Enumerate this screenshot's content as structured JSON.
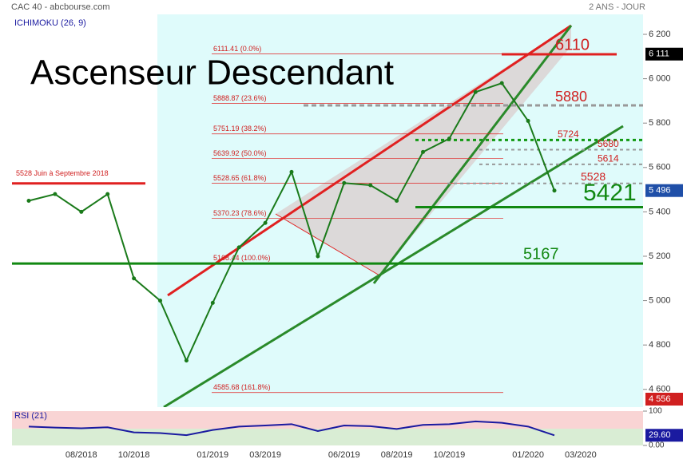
{
  "chart_data": {
    "type": "line",
    "source": "CAC 40 - abcbourse.com",
    "period": "2 ANS - JOUR",
    "indicator": "ICHIMOKU (26, 9)",
    "title": "Ascenseur Descendant",
    "categories": [
      null,
      null,
      "08/2018",
      null,
      "10/2018",
      null,
      null,
      "01/2019",
      null,
      "03/2019",
      null,
      null,
      "06/2019",
      null,
      "08/2019",
      null,
      "10/2019",
      null,
      null,
      "01/2020",
      null,
      "03/2020"
    ],
    "series": [
      {
        "name": "CAC 40",
        "color": "#1a7a1a",
        "values": [
          5450,
          5480,
          5400,
          5480,
          5100,
          5000,
          4730,
          4990,
          5240,
          5350,
          5580,
          5200,
          5530,
          5520,
          5450,
          5670,
          5730,
          5940,
          5980,
          5810,
          5496,
          null
        ]
      }
    ],
    "ylim": [
      4520,
      6290
    ],
    "yticks": [
      {
        "value": 6200,
        "label": "6 200"
      },
      {
        "value": 6000,
        "label": "6 000"
      },
      {
        "value": 5800,
        "label": "5 800"
      },
      {
        "value": 5600,
        "label": "5 600"
      },
      {
        "value": 5400,
        "label": "5 400"
      },
      {
        "value": 5200,
        "label": "5 200"
      },
      {
        "value": 5000,
        "label": "5 000"
      },
      {
        "value": 4800,
        "label": "4 800"
      },
      {
        "value": 4600,
        "label": "4 600"
      }
    ],
    "price_badges": [
      {
        "value": 6111,
        "label": "6 111",
        "color": "#000000"
      },
      {
        "value": 5496,
        "label": "5 496",
        "color": "#1f4fa8"
      },
      {
        "value": 4556,
        "label": "4 556",
        "color": "#d02020"
      }
    ],
    "levels": [
      {
        "value": 6110,
        "label": "6110",
        "color": "#e02020"
      },
      {
        "value": 5880,
        "label": "5880",
        "color": "#999999"
      },
      {
        "value": 5724,
        "label": "5724",
        "color": "#119911"
      },
      {
        "value": 5680,
        "label": "5680",
        "color": "#999999"
      },
      {
        "value": 5614,
        "label": "5614",
        "color": "#999999"
      },
      {
        "value": 5528,
        "label": "5528",
        "color": "#999999"
      },
      {
        "value": 5421,
        "label": "5421",
        "color": "#118811"
      },
      {
        "value": 5167,
        "label": "5167",
        "color": "#118811"
      }
    ],
    "range_2018": {
      "value": 5528,
      "label": "5528  Juin à Septembre 2018"
    },
    "fibonacci": [
      {
        "value": 6111.41,
        "label": "6111.41  (0.0%)"
      },
      {
        "value": 5888.87,
        "label": "5888.87  (23.6%)"
      },
      {
        "value": 5751.19,
        "label": "5751.19  (38.2%)"
      },
      {
        "value": 5639.92,
        "label": "5639.92  (50.0%)"
      },
      {
        "value": 5528.65,
        "label": "5528.65  (61.8%)"
      },
      {
        "value": 5370.23,
        "label": "5370.23  (78.6%)"
      },
      {
        "value": 5168.44,
        "label": "5168.44  (100.0%)"
      },
      {
        "value": 4585.68,
        "label": "4585.68  (161.8%)"
      }
    ],
    "rsi": {
      "name": "RSI (21)",
      "color": "#1a1aa0",
      "values": [
        55,
        52,
        50,
        53,
        38,
        36,
        30,
        45,
        55,
        58,
        62,
        42,
        58,
        56,
        48,
        60,
        62,
        70,
        66,
        55,
        29.6,
        null
      ],
      "ylim": [
        0,
        100
      ],
      "yticks": [
        100,
        {
          "value": 0,
          "label": "0.00"
        }
      ],
      "last": {
        "value": 29.6,
        "label": "29.60"
      }
    }
  }
}
